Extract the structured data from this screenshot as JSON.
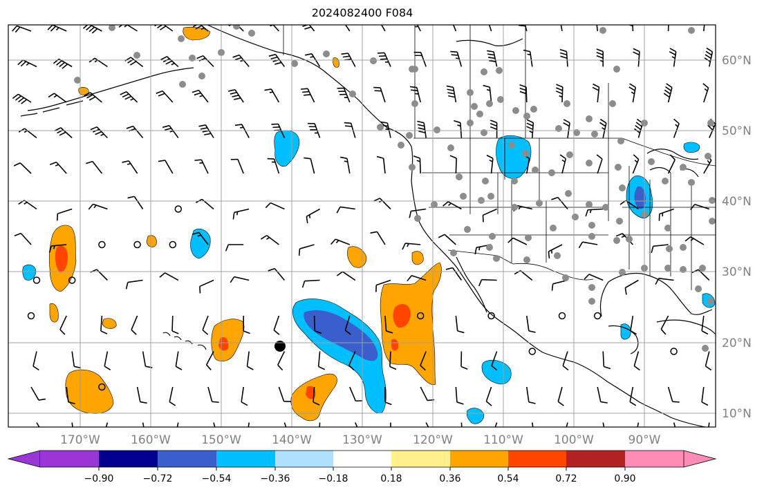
{
  "title": "2024082400 F084",
  "map": {
    "lat_labels": [
      "60°N",
      "50°N",
      "40°N",
      "30°N",
      "20°N",
      "10°N"
    ],
    "lon_labels": [
      "170°W",
      "160°W",
      "150°W",
      "140°W",
      "130°W",
      "120°W",
      "110°W",
      "100°W",
      "90°W"
    ],
    "frame_color": "#000000",
    "grid_color": "#a0a0a0"
  },
  "colorbar": {
    "tick_labels": [
      "−0.90",
      "−0.72",
      "−0.54",
      "−0.36",
      "−0.18",
      "0.18",
      "0.36",
      "0.54",
      "0.72",
      "0.90"
    ],
    "colors": [
      "#9a36d6",
      "#00008c",
      "#3a5fcd",
      "#00bfff",
      "#afe1ff",
      "#ffffff",
      "#fff08c",
      "#ffa500",
      "#ff4500",
      "#b22222",
      "#ff8cb4"
    ]
  },
  "legend_colors": {
    "positive_light": "#ffa500",
    "positive_mid": "#ff4500",
    "negative_light": "#00bfff",
    "negative_mid": "#3a5fcd",
    "station_dot": "#8c8c8c"
  }
}
